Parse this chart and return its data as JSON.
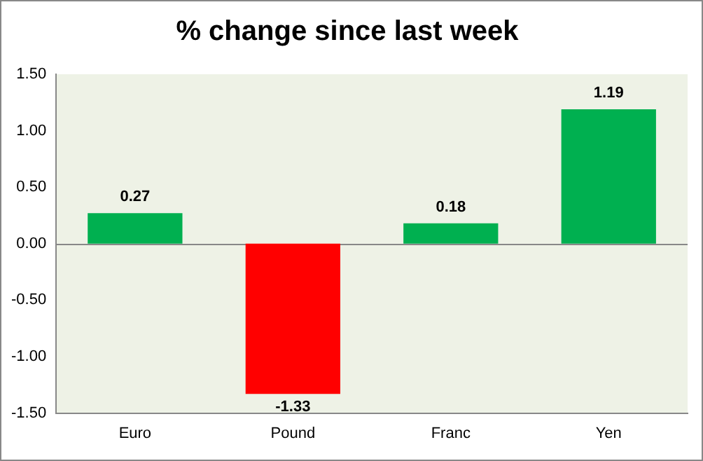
{
  "chart_data": {
    "type": "bar",
    "title": "% change since last week",
    "categories": [
      "Euro",
      "Pound",
      "Franc",
      "Yen"
    ],
    "values": [
      0.27,
      -1.33,
      0.18,
      1.19
    ],
    "colors": [
      "#00b050",
      "#ff0000",
      "#00b050",
      "#00b050"
    ],
    "value_labels": [
      "0.27",
      "-1.33",
      "0.18",
      "1.19"
    ],
    "ylim": [
      -1.5,
      1.5
    ],
    "yticks": [
      {
        "value": -1.5,
        "label": "-1.50"
      },
      {
        "value": -1,
        "label": "-1.00"
      },
      {
        "value": -0.5,
        "label": "-0.50"
      },
      {
        "value": 0,
        "label": "0.00"
      },
      {
        "value": 0.5,
        "label": "0.50"
      },
      {
        "value": 1,
        "label": "1.00"
      },
      {
        "value": 1.5,
        "label": "1.50"
      }
    ],
    "legend": false
  }
}
